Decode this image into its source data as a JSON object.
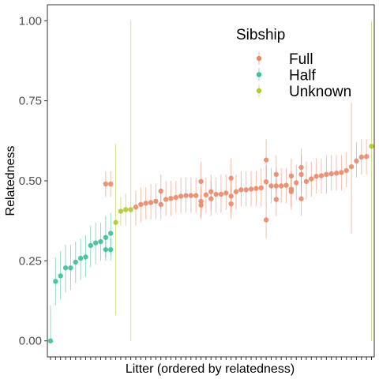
{
  "chart_data": {
    "type": "scatter",
    "xlabel": "Litter (ordered by relatedness)",
    "ylabel": "Relatedness",
    "ylim": [
      -0.05,
      1.05
    ],
    "y_ticks": [
      "0.00",
      "0.25",
      "0.50",
      "0.75",
      "1.00"
    ],
    "x_tick_labels_shown": false,
    "grid": false,
    "legend": {
      "title": "Sibship",
      "placement": "top-right inside",
      "entries": [
        "Full",
        "Half",
        "Unknown"
      ]
    },
    "series_colors": {
      "Full": "#e8896b",
      "Half": "#3dbf9a",
      "Unknown": "#b5c62f"
    },
    "litters": [
      {
        "litter": 1,
        "points": [
          {
            "y": 0.0,
            "lo": 0.0,
            "hi": 0.11,
            "sib": "Half"
          }
        ]
      },
      {
        "litter": 2,
        "points": [
          {
            "y": 0.186,
            "lo": 0.11,
            "hi": 0.26,
            "sib": "Half"
          }
        ]
      },
      {
        "litter": 3,
        "points": [
          {
            "y": 0.203,
            "lo": 0.13,
            "hi": 0.28,
            "sib": "Half"
          }
        ]
      },
      {
        "litter": 4,
        "points": [
          {
            "y": 0.228,
            "lo": 0.15,
            "hi": 0.3,
            "sib": "Half"
          }
        ]
      },
      {
        "litter": 5,
        "points": [
          {
            "y": 0.228,
            "lo": 0.16,
            "hi": 0.3,
            "sib": "Half"
          }
        ]
      },
      {
        "litter": 6,
        "points": [
          {
            "y": 0.246,
            "lo": 0.18,
            "hi": 0.31,
            "sib": "Half"
          }
        ]
      },
      {
        "litter": 7,
        "points": [
          {
            "y": 0.258,
            "lo": 0.19,
            "hi": 0.32,
            "sib": "Half"
          }
        ]
      },
      {
        "litter": 8,
        "points": [
          {
            "y": 0.262,
            "lo": 0.2,
            "hi": 0.33,
            "sib": "Half"
          }
        ]
      },
      {
        "litter": 9,
        "points": [
          {
            "y": 0.298,
            "lo": 0.23,
            "hi": 0.36,
            "sib": "Half"
          }
        ]
      },
      {
        "litter": 10,
        "points": [
          {
            "y": 0.306,
            "lo": 0.24,
            "hi": 0.37,
            "sib": "Half"
          }
        ]
      },
      {
        "litter": 11,
        "points": [
          {
            "y": 0.31,
            "lo": 0.25,
            "hi": 0.37,
            "sib": "Half"
          }
        ]
      },
      {
        "litter": 12,
        "points": [
          {
            "y": 0.323,
            "lo": 0.26,
            "hi": 0.39,
            "sib": "Half"
          },
          {
            "y": 0.49,
            "lo": 0.45,
            "hi": 0.53,
            "sib": "Full"
          },
          {
            "y": 0.285,
            "lo": 0.25,
            "hi": 0.32,
            "sib": "Half"
          }
        ]
      },
      {
        "litter": 13,
        "points": [
          {
            "y": 0.336,
            "lo": 0.27,
            "hi": 0.4,
            "sib": "Half"
          },
          {
            "y": 0.49,
            "lo": 0.45,
            "hi": 0.53,
            "sib": "Full"
          },
          {
            "y": 0.285,
            "lo": 0.25,
            "hi": 0.32,
            "sib": "Half"
          }
        ]
      },
      {
        "litter": 14,
        "points": [
          {
            "y": 0.37,
            "lo": 0.08,
            "hi": 0.615,
            "sib": "Unknown"
          }
        ]
      },
      {
        "litter": 15,
        "points": [
          {
            "y": 0.405,
            "lo": 0.36,
            "hi": 0.45,
            "sib": "Unknown"
          }
        ]
      },
      {
        "litter": 16,
        "points": [
          {
            "y": 0.41,
            "lo": 0.36,
            "hi": 0.46,
            "sib": "Unknown"
          }
        ]
      },
      {
        "litter": 17,
        "points": [
          {
            "y": 0.41,
            "lo": 0.0,
            "hi": 1.0,
            "sib": "Unknown"
          }
        ]
      },
      {
        "litter": 18,
        "points": [
          {
            "y": 0.418,
            "lo": 0.36,
            "hi": 0.47,
            "sib": "Full"
          }
        ]
      },
      {
        "litter": 19,
        "points": [
          {
            "y": 0.426,
            "lo": 0.37,
            "hi": 0.48,
            "sib": "Full"
          }
        ]
      },
      {
        "litter": 20,
        "points": [
          {
            "y": 0.43,
            "lo": 0.38,
            "hi": 0.48,
            "sib": "Full"
          }
        ]
      },
      {
        "litter": 21,
        "points": [
          {
            "y": 0.432,
            "lo": 0.38,
            "hi": 0.49,
            "sib": "Full"
          }
        ]
      },
      {
        "litter": 22,
        "points": [
          {
            "y": 0.436,
            "lo": 0.38,
            "hi": 0.49,
            "sib": "Full"
          }
        ]
      },
      {
        "litter": 23,
        "points": [
          {
            "y": 0.426,
            "lo": 0.38,
            "hi": 0.47,
            "sib": "Full"
          },
          {
            "y": 0.468,
            "lo": 0.41,
            "hi": 0.52,
            "sib": "Full"
          }
        ]
      },
      {
        "litter": 24,
        "points": [
          {
            "y": 0.442,
            "lo": 0.39,
            "hi": 0.5,
            "sib": "Full"
          }
        ]
      },
      {
        "litter": 25,
        "points": [
          {
            "y": 0.445,
            "lo": 0.39,
            "hi": 0.5,
            "sib": "Full"
          }
        ]
      },
      {
        "litter": 26,
        "points": [
          {
            "y": 0.448,
            "lo": 0.4,
            "hi": 0.5,
            "sib": "Full"
          }
        ]
      },
      {
        "litter": 27,
        "points": [
          {
            "y": 0.452,
            "lo": 0.4,
            "hi": 0.51,
            "sib": "Full"
          }
        ]
      },
      {
        "litter": 28,
        "points": [
          {
            "y": 0.454,
            "lo": 0.4,
            "hi": 0.51,
            "sib": "Full"
          }
        ]
      },
      {
        "litter": 29,
        "points": [
          {
            "y": 0.454,
            "lo": 0.4,
            "hi": 0.51,
            "sib": "Full"
          }
        ]
      },
      {
        "litter": 30,
        "points": [
          {
            "y": 0.454,
            "lo": 0.4,
            "hi": 0.51,
            "sib": "Full"
          }
        ]
      },
      {
        "litter": 31,
        "points": [
          {
            "y": 0.498,
            "lo": 0.44,
            "hi": 0.56,
            "sib": "Full"
          },
          {
            "y": 0.436,
            "lo": 0.39,
            "hi": 0.48,
            "sib": "Full"
          },
          {
            "y": 0.424,
            "lo": 0.38,
            "hi": 0.47,
            "sib": "Full"
          }
        ]
      },
      {
        "litter": 32,
        "points": [
          {
            "y": 0.456,
            "lo": 0.4,
            "hi": 0.51,
            "sib": "Full"
          }
        ]
      },
      {
        "litter": 33,
        "points": [
          {
            "y": 0.466,
            "lo": 0.41,
            "hi": 0.52,
            "sib": "Full"
          },
          {
            "y": 0.444,
            "lo": 0.39,
            "hi": 0.5,
            "sib": "Full"
          }
        ]
      },
      {
        "litter": 34,
        "points": [
          {
            "y": 0.458,
            "lo": 0.4,
            "hi": 0.51,
            "sib": "Full"
          }
        ]
      },
      {
        "litter": 35,
        "points": [
          {
            "y": 0.458,
            "lo": 0.4,
            "hi": 0.52,
            "sib": "Full"
          }
        ]
      },
      {
        "litter": 36,
        "points": [
          {
            "y": 0.462,
            "lo": 0.41,
            "hi": 0.52,
            "sib": "Full"
          }
        ]
      },
      {
        "litter": 37,
        "points": [
          {
            "y": 0.508,
            "lo": 0.45,
            "hi": 0.57,
            "sib": "Full"
          },
          {
            "y": 0.452,
            "lo": 0.4,
            "hi": 0.5,
            "sib": "Full"
          },
          {
            "y": 0.428,
            "lo": 0.38,
            "hi": 0.48,
            "sib": "Full"
          }
        ]
      },
      {
        "litter": 38,
        "points": [
          {
            "y": 0.466,
            "lo": 0.41,
            "hi": 0.52,
            "sib": "Full"
          }
        ]
      },
      {
        "litter": 39,
        "points": [
          {
            "y": 0.472,
            "lo": 0.42,
            "hi": 0.53,
            "sib": "Full"
          }
        ]
      },
      {
        "litter": 40,
        "points": [
          {
            "y": 0.472,
            "lo": 0.42,
            "hi": 0.53,
            "sib": "Full"
          }
        ]
      },
      {
        "litter": 41,
        "points": [
          {
            "y": 0.474,
            "lo": 0.42,
            "hi": 0.53,
            "sib": "Full"
          }
        ]
      },
      {
        "litter": 42,
        "points": [
          {
            "y": 0.476,
            "lo": 0.42,
            "hi": 0.53,
            "sib": "Full"
          }
        ]
      },
      {
        "litter": 43,
        "points": [
          {
            "y": 0.478,
            "lo": 0.42,
            "hi": 0.54,
            "sib": "Full"
          }
        ]
      },
      {
        "litter": 44,
        "points": [
          {
            "y": 0.565,
            "lo": 0.5,
            "hi": 0.63,
            "sib": "Full"
          },
          {
            "y": 0.497,
            "lo": 0.44,
            "hi": 0.55,
            "sib": "Full"
          },
          {
            "y": 0.378,
            "lo": 0.32,
            "hi": 0.44,
            "sib": "Full"
          }
        ]
      },
      {
        "litter": 45,
        "points": [
          {
            "y": 0.484,
            "lo": 0.43,
            "hi": 0.54,
            "sib": "Full"
          }
        ]
      },
      {
        "litter": 46,
        "points": [
          {
            "y": 0.52,
            "lo": 0.46,
            "hi": 0.58,
            "sib": "Full"
          },
          {
            "y": 0.484,
            "lo": 0.43,
            "hi": 0.54,
            "sib": "Full"
          },
          {
            "y": 0.442,
            "lo": 0.39,
            "hi": 0.5,
            "sib": "Full"
          }
        ]
      },
      {
        "litter": 47,
        "points": [
          {
            "y": 0.484,
            "lo": 0.43,
            "hi": 0.54,
            "sib": "Full"
          }
        ]
      },
      {
        "litter": 48,
        "points": [
          {
            "y": 0.486,
            "lo": 0.43,
            "hi": 0.54,
            "sib": "Full"
          }
        ]
      },
      {
        "litter": 49,
        "points": [
          {
            "y": 0.515,
            "lo": 0.46,
            "hi": 0.57,
            "sib": "Full"
          },
          {
            "y": 0.474,
            "lo": 0.42,
            "hi": 0.53,
            "sib": "Full"
          },
          {
            "y": 0.466,
            "lo": 0.41,
            "hi": 0.52,
            "sib": "Full"
          }
        ]
      },
      {
        "litter": 50,
        "points": [
          {
            "y": 0.494,
            "lo": 0.44,
            "hi": 0.55,
            "sib": "Full"
          }
        ]
      },
      {
        "litter": 51,
        "points": [
          {
            "y": 0.542,
            "lo": 0.48,
            "hi": 0.6,
            "sib": "Full"
          },
          {
            "y": 0.52,
            "lo": 0.46,
            "hi": 0.58,
            "sib": "Full"
          },
          {
            "y": 0.444,
            "lo": 0.39,
            "hi": 0.5,
            "sib": "Full"
          }
        ]
      },
      {
        "litter": 52,
        "points": [
          {
            "y": 0.498,
            "lo": 0.44,
            "hi": 0.56,
            "sib": "Full"
          }
        ]
      },
      {
        "litter": 53,
        "points": [
          {
            "y": 0.506,
            "lo": 0.45,
            "hi": 0.56,
            "sib": "Full"
          }
        ]
      },
      {
        "litter": 54,
        "points": [
          {
            "y": 0.514,
            "lo": 0.46,
            "hi": 0.57,
            "sib": "Full"
          }
        ]
      },
      {
        "litter": 55,
        "points": [
          {
            "y": 0.516,
            "lo": 0.46,
            "hi": 0.57,
            "sib": "Full"
          }
        ]
      },
      {
        "litter": 56,
        "points": [
          {
            "y": 0.52,
            "lo": 0.46,
            "hi": 0.58,
            "sib": "Full"
          }
        ]
      },
      {
        "litter": 57,
        "points": [
          {
            "y": 0.522,
            "lo": 0.47,
            "hi": 0.58,
            "sib": "Full"
          }
        ]
      },
      {
        "litter": 58,
        "points": [
          {
            "y": 0.524,
            "lo": 0.47,
            "hi": 0.58,
            "sib": "Full"
          }
        ]
      },
      {
        "litter": 59,
        "points": [
          {
            "y": 0.526,
            "lo": 0.47,
            "hi": 0.58,
            "sib": "Full"
          }
        ]
      },
      {
        "litter": 60,
        "points": [
          {
            "y": 0.532,
            "lo": 0.48,
            "hi": 0.59,
            "sib": "Full"
          }
        ]
      },
      {
        "litter": 61,
        "points": [
          {
            "y": 0.544,
            "lo": 0.335,
            "hi": 0.745,
            "sib": "Full"
          }
        ]
      },
      {
        "litter": 62,
        "points": [
          {
            "y": 0.562,
            "lo": 0.51,
            "hi": 0.62,
            "sib": "Full"
          }
        ]
      },
      {
        "litter": 63,
        "points": [
          {
            "y": 0.574,
            "lo": 0.52,
            "hi": 0.63,
            "sib": "Full"
          }
        ]
      },
      {
        "litter": 64,
        "points": [
          {
            "y": 0.576,
            "lo": 0.52,
            "hi": 0.63,
            "sib": "Full"
          }
        ]
      },
      {
        "litter": 65,
        "points": [
          {
            "y": 0.608,
            "lo": 0.0,
            "hi": 1.0,
            "sib": "Unknown"
          }
        ]
      }
    ]
  }
}
